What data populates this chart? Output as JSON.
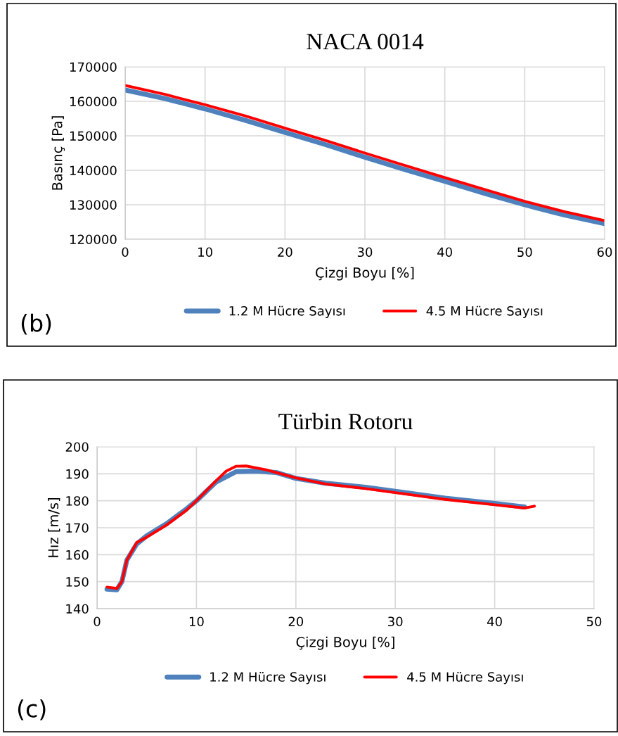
{
  "chart_data": [
    {
      "type": "line",
      "title": "NACA 0014",
      "xlabel": "Çizgi Boyu [%]",
      "ylabel": "Basınç [Pa]",
      "annotations": [
        "(b)"
      ],
      "xlim": [
        0,
        60
      ],
      "xticks": [
        0,
        10,
        20,
        30,
        40,
        50,
        60
      ],
      "ylim": [
        120000,
        170000
      ],
      "yticks": [
        120000,
        130000,
        140000,
        150000,
        160000,
        170000
      ],
      "grid": true,
      "legend": "bottom",
      "marker": "none",
      "line_style": "solid",
      "x": [
        0,
        5,
        10,
        15,
        20,
        25,
        30,
        35,
        40,
        45,
        50,
        55,
        60
      ],
      "series": [
        {
          "name": "1.2 M Hücre Sayısı",
          "color": "#4f81bd",
          "values": [
            163300,
            160800,
            157800,
            154500,
            151000,
            147500,
            143800,
            140200,
            136800,
            133300,
            130000,
            127000,
            124500
          ]
        },
        {
          "name": "4.5 M Hücre Sayısı",
          "color": "#ff0000",
          "values": [
            164600,
            162000,
            159000,
            155800,
            152200,
            148700,
            145000,
            141400,
            137900,
            134400,
            131000,
            128000,
            125400
          ]
        }
      ]
    },
    {
      "type": "line",
      "title": "Türbin Rotoru",
      "xlabel": "Çizgi Boyu [%]",
      "ylabel": "Hız [m/s]",
      "annotations": [
        "(c)"
      ],
      "xlim": [
        0,
        50
      ],
      "xticks": [
        0,
        10,
        20,
        30,
        40,
        50
      ],
      "ylim": [
        140,
        200
      ],
      "yticks": [
        140,
        150,
        160,
        170,
        180,
        190,
        200
      ],
      "grid": true,
      "legend": "bottom",
      "marker": "none",
      "line_style": "solid",
      "series": [
        {
          "name": "1.2 M Hücre Sayısı",
          "color": "#4f81bd",
          "x": [
            1,
            2,
            2.5,
            3,
            4,
            5,
            7,
            9,
            10,
            12,
            14,
            16,
            18,
            20,
            23,
            27,
            30,
            35,
            40,
            43
          ],
          "values": [
            147.2,
            147,
            150,
            158,
            164,
            167,
            171.5,
            177,
            180,
            187,
            190.8,
            191,
            190.5,
            188.3,
            186.5,
            185,
            183.5,
            181,
            179,
            177.7
          ]
        },
        {
          "name": "4.5 M Hücre Sayısı",
          "color": "#ff0000",
          "x": [
            1,
            2,
            2.5,
            3,
            4,
            5,
            7,
            9,
            10,
            12,
            13,
            14,
            15,
            17,
            20,
            23,
            27,
            30,
            35,
            40,
            43,
            44
          ],
          "values": [
            148,
            147.5,
            150,
            158,
            164.5,
            166.5,
            171,
            176.5,
            180,
            187.5,
            191,
            192.8,
            192.9,
            191.5,
            188.5,
            186.2,
            184.5,
            183,
            180.5,
            178.5,
            177.3,
            178
          ]
        }
      ]
    }
  ]
}
